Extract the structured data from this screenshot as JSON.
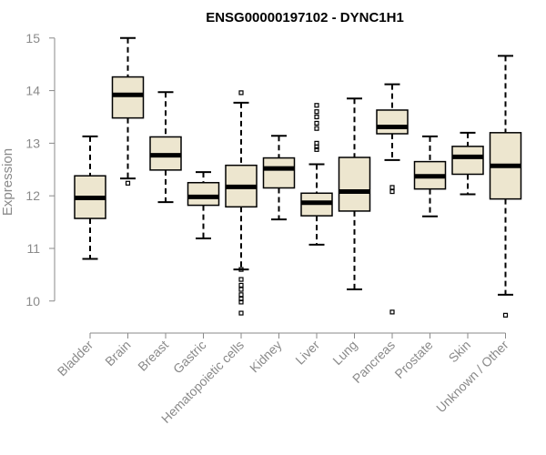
{
  "chart_data": {
    "type": "boxplot",
    "title": "ENSG00000197102 - DYNC1H1",
    "xlabel": "",
    "ylabel": "Expression",
    "ylim": [
      9.65,
      15.1
    ],
    "yticks": [
      10,
      11,
      12,
      13,
      14,
      15
    ],
    "colors": {
      "box_fill": "#ede6cf",
      "stroke": "#000000",
      "axis": "#8a8a8a"
    },
    "categories": [
      "Bladder",
      "Brain",
      "Breast",
      "Gastric",
      "Hematopoietic cells",
      "Kidney",
      "Liver",
      "Lung",
      "Pancreas",
      "Prostate",
      "Skin",
      "Unknown / Other"
    ],
    "boxes": [
      {
        "q1": 11.57,
        "median": 11.96,
        "q3": 12.38,
        "whisker_low": 10.8,
        "whisker_high": 13.13,
        "outliers": []
      },
      {
        "q1": 13.48,
        "median": 13.92,
        "q3": 14.26,
        "whisker_low": 12.33,
        "whisker_high": 15.0,
        "outliers": [
          12.24
        ]
      },
      {
        "q1": 12.49,
        "median": 12.77,
        "q3": 13.12,
        "whisker_low": 11.88,
        "whisker_high": 13.97,
        "outliers": []
      },
      {
        "q1": 11.82,
        "median": 11.98,
        "q3": 12.25,
        "whisker_low": 11.19,
        "whisker_high": 12.45,
        "outliers": []
      },
      {
        "q1": 11.79,
        "median": 12.17,
        "q3": 12.58,
        "whisker_low": 10.6,
        "whisker_high": 13.77,
        "outliers": [
          13.96,
          10.6,
          10.41,
          10.3,
          10.22,
          10.12,
          10.04,
          9.98,
          9.77
        ]
      },
      {
        "q1": 12.15,
        "median": 12.52,
        "q3": 12.72,
        "whisker_low": 11.55,
        "whisker_high": 13.14,
        "outliers": []
      },
      {
        "q1": 11.62,
        "median": 11.87,
        "q3": 12.05,
        "whisker_low": 11.07,
        "whisker_high": 12.6,
        "outliers": [
          13.72,
          13.6,
          13.5,
          13.38,
          13.28,
          13.0,
          12.93,
          12.88
        ]
      },
      {
        "q1": 11.71,
        "median": 12.08,
        "q3": 12.73,
        "whisker_low": 10.22,
        "whisker_high": 13.85,
        "outliers": []
      },
      {
        "q1": 13.18,
        "median": 13.31,
        "q3": 13.63,
        "whisker_low": 12.68,
        "whisker_high": 14.12,
        "outliers": [
          12.16,
          12.08,
          9.79
        ]
      },
      {
        "q1": 12.13,
        "median": 12.37,
        "q3": 12.65,
        "whisker_low": 11.61,
        "whisker_high": 13.13,
        "outliers": []
      },
      {
        "q1": 12.41,
        "median": 12.74,
        "q3": 12.94,
        "whisker_low": 12.03,
        "whisker_high": 13.2,
        "outliers": []
      },
      {
        "q1": 11.94,
        "median": 12.57,
        "q3": 13.2,
        "whisker_low": 10.12,
        "whisker_high": 14.66,
        "outliers": [
          9.73
        ]
      }
    ]
  }
}
